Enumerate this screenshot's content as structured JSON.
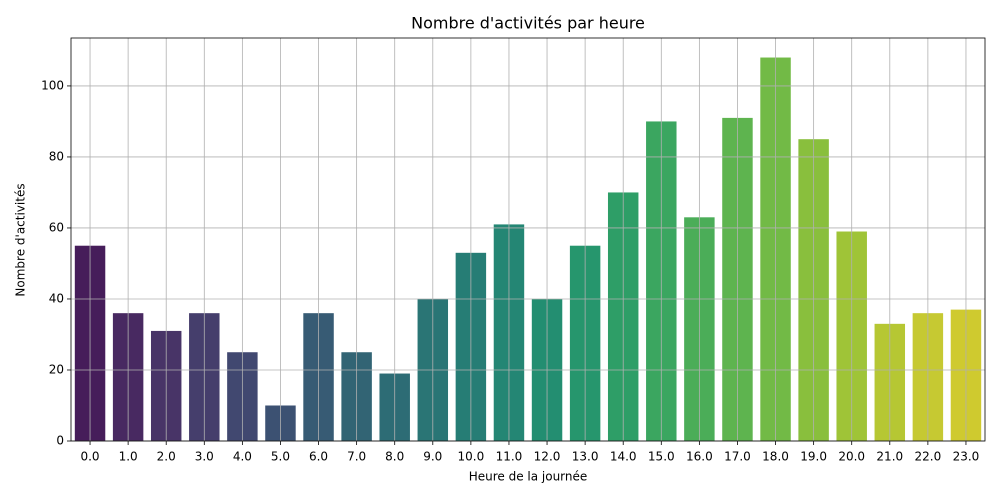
{
  "chart_data": {
    "type": "bar",
    "title": "Nombre d'activités par heure",
    "xlabel": "Heure de la journée",
    "ylabel": "Nombre d'activités",
    "categories": [
      "0.0",
      "1.0",
      "2.0",
      "3.0",
      "4.0",
      "5.0",
      "6.0",
      "7.0",
      "8.0",
      "9.0",
      "10.0",
      "11.0",
      "12.0",
      "13.0",
      "14.0",
      "15.0",
      "16.0",
      "17.0",
      "18.0",
      "19.0",
      "20.0",
      "21.0",
      "22.0",
      "23.0"
    ],
    "values": [
      55,
      36,
      31,
      36,
      25,
      10,
      36,
      25,
      19,
      40,
      53,
      61,
      40,
      55,
      70,
      90,
      63,
      91,
      108,
      85,
      59,
      33,
      36,
      37
    ],
    "colors": [
      "#461d5a",
      "#482961",
      "#483467",
      "#453e6c",
      "#414870",
      "#3c5172",
      "#375b74",
      "#326474",
      "#2d6c75",
      "#2a7575",
      "#267d75",
      "#248674",
      "#238e71",
      "#26966d",
      "#2e9e67",
      "#3ba660",
      "#4bad58",
      "#5eb44f",
      "#72ba46",
      "#89bf3d",
      "#9fc437",
      "#b6c733",
      "#c6c932",
      "#cfca2f"
    ],
    "ylim": [
      0,
      113.5
    ],
    "yticks": [
      0,
      20,
      40,
      60,
      80,
      100
    ],
    "grid": true
  }
}
